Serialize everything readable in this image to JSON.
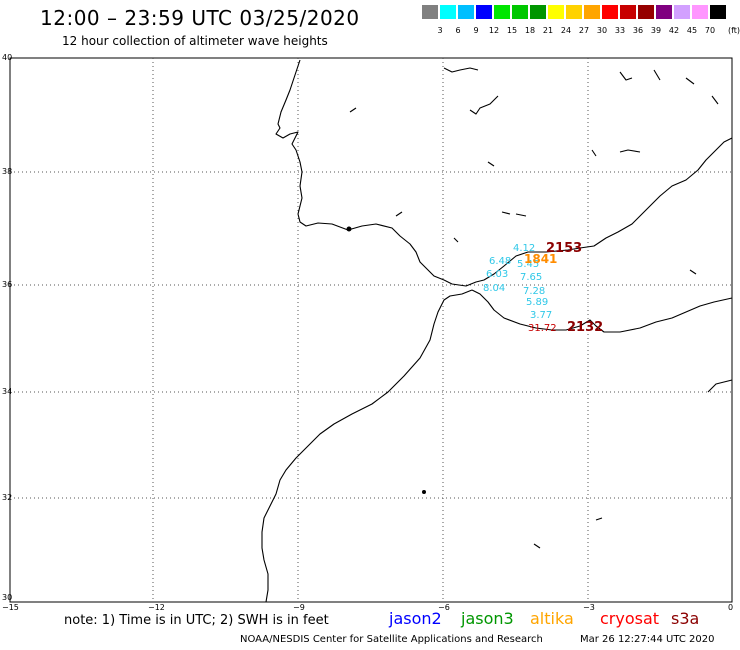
{
  "header": {
    "title": "12:00 – 23:59 UTC 03/25/2020",
    "subtitle": "12 hour collection of altimeter wave heights"
  },
  "scale": {
    "unit": "(ft)",
    "entries": [
      {
        "label": "",
        "color": "#808080"
      },
      {
        "label": "3",
        "color": "#00ffff"
      },
      {
        "label": "6",
        "color": "#00bfff"
      },
      {
        "label": "9",
        "color": "#0000ff"
      },
      {
        "label": "12",
        "color": "#00e600"
      },
      {
        "label": "15",
        "color": "#00c800"
      },
      {
        "label": "18",
        "color": "#009600"
      },
      {
        "label": "21",
        "color": "#ffff00"
      },
      {
        "label": "24",
        "color": "#ffd200"
      },
      {
        "label": "27",
        "color": "#ffa500"
      },
      {
        "label": "30",
        "color": "#ff0000"
      },
      {
        "label": "33",
        "color": "#c80000"
      },
      {
        "label": "36",
        "color": "#960000"
      },
      {
        "label": "39",
        "color": "#800080"
      },
      {
        "label": "42",
        "color": "#d2a0ff"
      },
      {
        "label": "45",
        "color": "#ff96ff"
      },
      {
        "label": "70",
        "color": "#000000"
      }
    ]
  },
  "axes": {
    "lat_labels": [
      "40",
      "38",
      "36",
      "34",
      "32",
      "30"
    ],
    "lon_labels": [
      "−15",
      "−12",
      "−9",
      "−6",
      "−3",
      "0"
    ]
  },
  "observations": [
    {
      "text": "4.12",
      "color": "#30c8e8"
    },
    {
      "text": "2153",
      "color": "#8b0000"
    },
    {
      "text": "6.48",
      "color": "#30c8e8"
    },
    {
      "text": "5.45",
      "color": "#30c8e8"
    },
    {
      "text": "1841",
      "color": "#ff8c00"
    },
    {
      "text": "6.03",
      "color": "#30c8e8"
    },
    {
      "text": "7.65",
      "color": "#30c8e8"
    },
    {
      "text": "8.04",
      "color": "#30c8e8"
    },
    {
      "text": "7.28",
      "color": "#30c8e8"
    },
    {
      "text": "5.89",
      "color": "#30c8e8"
    },
    {
      "text": "3.77",
      "color": "#30c8e8"
    },
    {
      "text": "31.72",
      "color": "#c80000"
    },
    {
      "text": "2132",
      "color": "#8b0000"
    }
  ],
  "footer": {
    "note": "note: 1) Time is in UTC; 2) SWH is in feet",
    "missions": [
      {
        "name": "jason2",
        "color": "#0000ff"
      },
      {
        "name": "jason3",
        "color": "#009600"
      },
      {
        "name": "altika",
        "color": "#ffa500"
      },
      {
        "name": "cryosat",
        "color": "#ff0000"
      },
      {
        "name": "s3a",
        "color": "#8b0000"
      }
    ],
    "credit": "NOAA/NESDIS Center for Satellite Applications and Research",
    "timestamp": "Mar 26 12:27:44 UTC 2020"
  }
}
